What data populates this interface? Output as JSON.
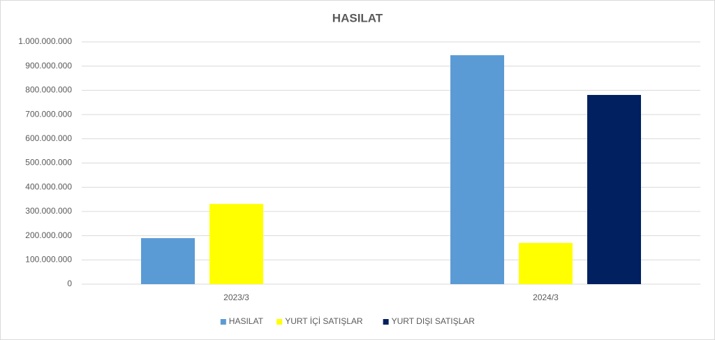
{
  "chart_data": {
    "type": "bar",
    "title": "HASILAT",
    "categories": [
      "2023/3",
      "2024/3"
    ],
    "series": [
      {
        "name": "HASILAT",
        "color": "#5b9bd5",
        "values": [
          190000000,
          945000000
        ]
      },
      {
        "name": "YURT İÇİ SATIŞLAR",
        "color": "#ffff00",
        "values": [
          331000000,
          170000000
        ]
      },
      {
        "name": "YURT DIŞI SATIŞLAR",
        "color": "#002060",
        "values": [
          0,
          781000000
        ]
      }
    ],
    "ylim": [
      0,
      1000000000
    ],
    "yticks": [
      0,
      {
        "value": 100000000,
        "label": "100.000.000"
      },
      {
        "value": 200000000,
        "label": "200.000.000"
      },
      {
        "value": 300000000,
        "label": "300.000.000"
      },
      {
        "value": 400000000,
        "label": "400.000.000"
      },
      {
        "value": 500000000,
        "label": "500.000.000"
      },
      {
        "value": 600000000,
        "label": "600.000.000"
      },
      {
        "value": 700000000,
        "label": "700.000.000"
      },
      {
        "value": 800000000,
        "label": "800.000.000"
      },
      {
        "value": 900000000,
        "label": "900.000.000"
      },
      {
        "value": 1000000000,
        "label": "1.000.000.000"
      }
    ],
    "grid": true,
    "legend": "bottom"
  }
}
